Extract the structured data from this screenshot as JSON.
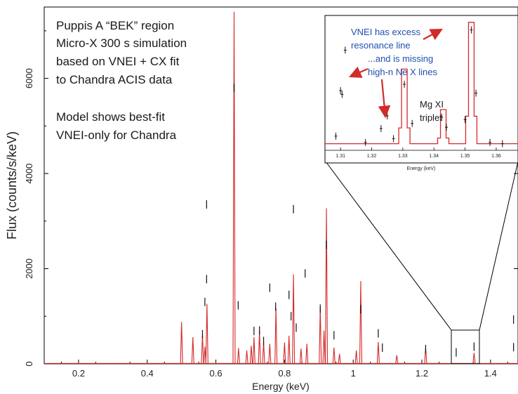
{
  "chart_data": [
    {
      "type": "line",
      "xlabel": "Energy (keV)",
      "ylabel": "Flux (counts/s/keV)",
      "xlim": [
        0.1,
        1.48
      ],
      "ylim": [
        0,
        7500
      ],
      "x_ticks": [
        "0.2",
        "0.4",
        "0.6",
        "0.8",
        "1",
        "1.2",
        "1.4"
      ],
      "x_tick_values": [
        0.2,
        0.4,
        0.6,
        0.8,
        1.0,
        1.2,
        1.4
      ],
      "y_ticks": [
        "0",
        "2000",
        "4000",
        "6000"
      ],
      "y_tick_values": [
        0,
        2000,
        4000,
        6000
      ],
      "model_color": "#d42a2a",
      "data_color": "#111111",
      "annotation_lines": [
        "Puppis A “BEK” region",
        "Micro-X 300 s simulation",
        "based on VNEI + CX fit",
        "to Chandra ACIS data",
        "",
        "Model shows best-fit",
        "VNEI-only for Chandra"
      ],
      "model_lines": [
        {
          "x": 0.5,
          "y": 880
        },
        {
          "x": 0.533,
          "y": 560
        },
        {
          "x": 0.561,
          "y": 620
        },
        {
          "x": 0.568,
          "y": 360
        },
        {
          "x": 0.574,
          "y": 1260
        },
        {
          "x": 0.653,
          "y": 7400
        },
        {
          "x": 0.666,
          "y": 330
        },
        {
          "x": 0.69,
          "y": 280
        },
        {
          "x": 0.703,
          "y": 380
        },
        {
          "x": 0.711,
          "y": 560
        },
        {
          "x": 0.727,
          "y": 690
        },
        {
          "x": 0.739,
          "y": 460
        },
        {
          "x": 0.757,
          "y": 420
        },
        {
          "x": 0.775,
          "y": 1180
        },
        {
          "x": 0.8,
          "y": 450
        },
        {
          "x": 0.813,
          "y": 590
        },
        {
          "x": 0.826,
          "y": 1880
        },
        {
          "x": 0.848,
          "y": 320
        },
        {
          "x": 0.865,
          "y": 420
        },
        {
          "x": 0.904,
          "y": 1200
        },
        {
          "x": 0.915,
          "y": 700
        },
        {
          "x": 0.922,
          "y": 3270
        },
        {
          "x": 0.944,
          "y": 340
        },
        {
          "x": 0.96,
          "y": 210
        },
        {
          "x": 1.009,
          "y": 280
        },
        {
          "x": 1.022,
          "y": 1740
        },
        {
          "x": 1.073,
          "y": 460
        },
        {
          "x": 1.127,
          "y": 180
        },
        {
          "x": 1.211,
          "y": 340
        },
        {
          "x": 1.352,
          "y": 230
        }
      ],
      "data_marks": [
        {
          "x": 0.573,
          "y": 3350
        },
        {
          "x": 0.573,
          "y": 1780
        },
        {
          "x": 0.568,
          "y": 1300
        },
        {
          "x": 0.561,
          "y": 620
        },
        {
          "x": 0.653,
          "y": 5800
        },
        {
          "x": 0.665,
          "y": 1230
        },
        {
          "x": 0.711,
          "y": 690
        },
        {
          "x": 0.727,
          "y": 700
        },
        {
          "x": 0.739,
          "y": 480
        },
        {
          "x": 0.757,
          "y": 1600
        },
        {
          "x": 0.774,
          "y": 1200
        },
        {
          "x": 0.813,
          "y": 1450
        },
        {
          "x": 0.819,
          "y": 1000
        },
        {
          "x": 0.826,
          "y": 3250
        },
        {
          "x": 0.834,
          "y": 760
        },
        {
          "x": 0.86,
          "y": 1900
        },
        {
          "x": 0.904,
          "y": 1160
        },
        {
          "x": 0.922,
          "y": 2500
        },
        {
          "x": 0.944,
          "y": 600
        },
        {
          "x": 1.022,
          "y": 1150
        },
        {
          "x": 1.073,
          "y": 640
        },
        {
          "x": 1.085,
          "y": 340
        },
        {
          "x": 1.211,
          "y": 310
        },
        {
          "x": 1.3,
          "y": 240
        },
        {
          "x": 1.352,
          "y": 360
        },
        {
          "x": 1.467,
          "y": 930
        },
        {
          "x": 1.467,
          "y": 350
        }
      ],
      "zoom_range": [
        1.3,
        1.37
      ]
    },
    {
      "type": "line",
      "xlabel": "Energy (keV)",
      "xlim": [
        1.305,
        1.367
      ],
      "x_ticks": [
        "1.31",
        "1.32",
        "1.33",
        "1.34",
        "1.35",
        "1.36"
      ],
      "x_tick_values": [
        1.31,
        1.32,
        1.33,
        1.34,
        1.35,
        1.36
      ],
      "model_lines": [
        {
          "x": 1.3305,
          "y": 0.62
        },
        {
          "x": 1.343,
          "y": 0.3
        },
        {
          "x": 1.352,
          "y": 0.99
        }
      ],
      "annotations": {
        "excess": "VNEI has excess",
        "excess_2": "resonance line",
        "missing": "...and is missing",
        "missing_2": "high-n Ne X lines",
        "mg": "Mg XI",
        "mg_2": "triplet"
      },
      "annotation_color": "#1f4fb0",
      "arrow_color": "#d42a2a"
    }
  ]
}
